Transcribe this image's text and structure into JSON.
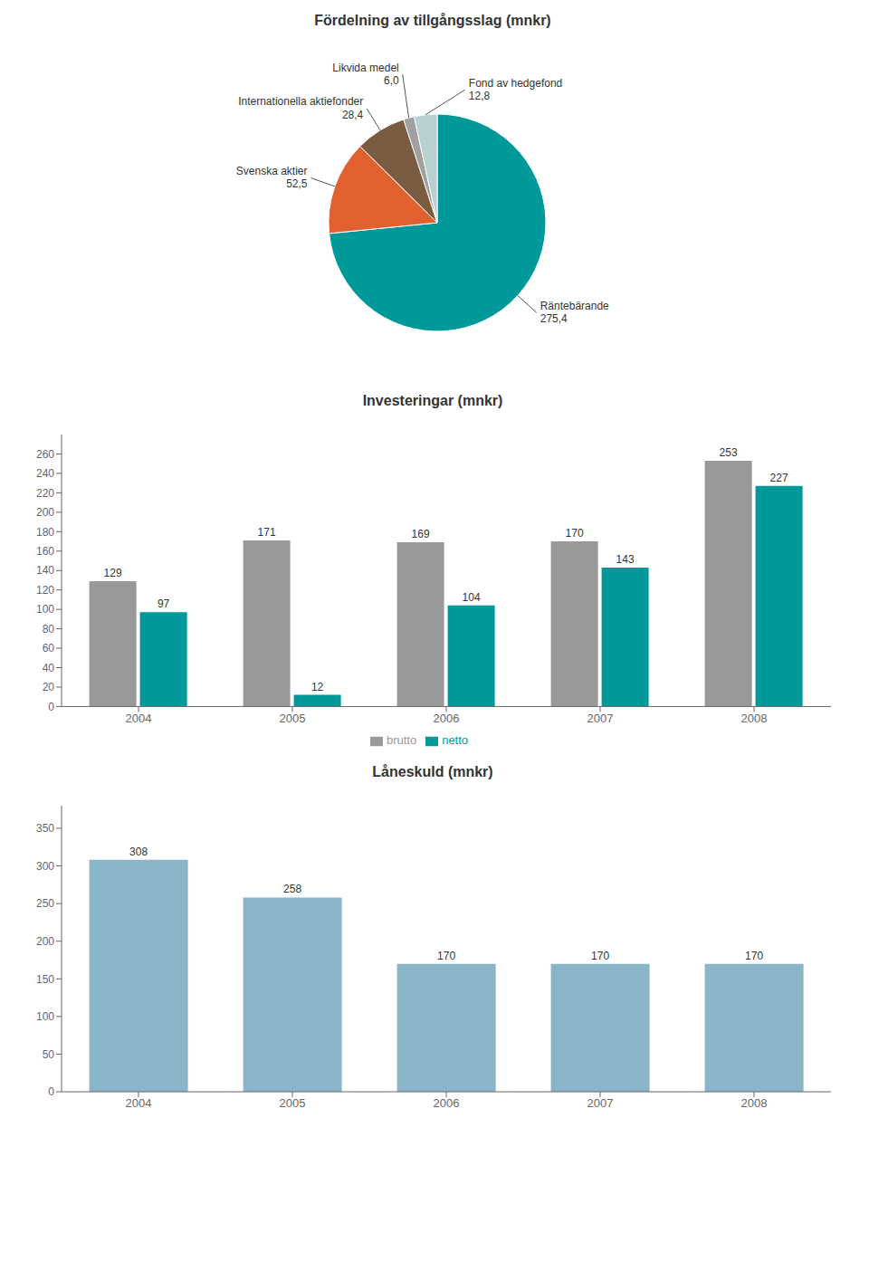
{
  "chart_data": [
    {
      "type": "pie",
      "title": "Fördelning av tillgångsslag (mnkr)",
      "categories": [
        "Räntebärande",
        "Svenska aktier",
        "Internationella aktiefonder",
        "Likvida medel",
        "Fond av hedgefond"
      ],
      "values": [
        275.4,
        52.5,
        28.4,
        6.0,
        12.8
      ],
      "value_labels": [
        "275,4",
        "52,5",
        "28,4",
        "6,0",
        "12,8"
      ],
      "colors": [
        "#009999",
        "#e06030",
        "#7a5c40",
        "#a0a0a0",
        "#b8d0d0"
      ],
      "data_labels": true
    },
    {
      "type": "bar",
      "title": "Investeringar (mnkr)",
      "categories": [
        "2004",
        "2005",
        "2006",
        "2007",
        "2008"
      ],
      "series": [
        {
          "name": "brutto",
          "color": "#999999",
          "values": [
            129,
            171,
            169,
            170,
            253
          ]
        },
        {
          "name": "netto",
          "color": "#009999",
          "values": [
            97,
            12,
            104,
            143,
            227
          ]
        }
      ],
      "ylim": [
        0,
        280
      ],
      "yticks": [
        0,
        20,
        40,
        60,
        80,
        100,
        120,
        140,
        160,
        180,
        200,
        220,
        240,
        260
      ],
      "grid": false,
      "legend": "bottom",
      "data_labels": true
    },
    {
      "type": "bar",
      "title": "Låneskuld (mnkr)",
      "categories": [
        "2004",
        "2005",
        "2006",
        "2007",
        "2008"
      ],
      "values": [
        308,
        258,
        170,
        170,
        170
      ],
      "color": "#8ab4c8",
      "ylim": [
        0,
        380
      ],
      "yticks": [
        0,
        50,
        100,
        150,
        200,
        250,
        300,
        350
      ],
      "grid": false,
      "data_labels": true
    }
  ]
}
